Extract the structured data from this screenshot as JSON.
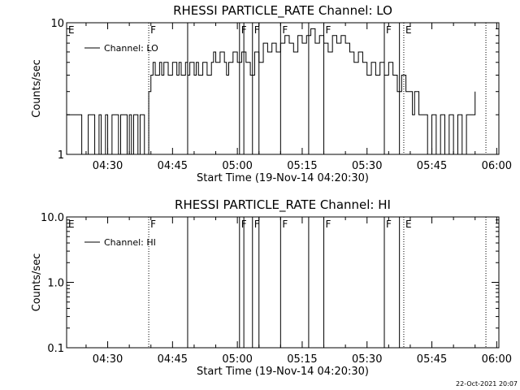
{
  "chart_data": [
    {
      "type": "line",
      "title": "RHESSI  PARTICLE_RATE  Channel:  LO",
      "xlabel": "Start Time (19-Nov-14 04:20:30)",
      "ylabel": "Counts/sec",
      "y_scale": "log",
      "ylim": [
        1,
        10
      ],
      "y_ticks": [
        "1",
        "10"
      ],
      "x_range": [
        "04:20:30",
        "06:00:30"
      ],
      "x_ticks": [
        "04:30",
        "04:45",
        "05:00",
        "05:15",
        "05:30",
        "05:45",
        "06:00"
      ],
      "legend_position": "top-left",
      "series": [
        {
          "name": "Channel: LO",
          "color": "#000000",
          "x": [
            "04:20:30",
            "04:22:00",
            "04:23:30",
            "04:24:00",
            "04:25:00",
            "04:25:30",
            "04:26:30",
            "04:27:00",
            "04:28:00",
            "04:28:30",
            "04:29:30",
            "04:30:00",
            "04:31:00",
            "04:32:00",
            "04:32:30",
            "04:33:00",
            "04:34:30",
            "04:35:00",
            "04:35:30",
            "04:36:00",
            "04:37:00",
            "04:37:30",
            "04:38:30",
            "04:39:00",
            "04:39:30",
            "04:40:00",
            "04:40:30",
            "04:41:00",
            "04:42:00",
            "04:42:30",
            "04:43:00",
            "04:44:00",
            "04:45:00",
            "04:46:00",
            "04:46:30",
            "04:47:00",
            "04:48:00",
            "04:48:30",
            "04:49:00",
            "04:50:00",
            "04:50:30",
            "04:51:00",
            "04:52:00",
            "04:52:30",
            "04:53:00",
            "04:54:00",
            "04:54:30",
            "04:55:00",
            "04:56:00",
            "04:57:00",
            "04:57:30",
            "04:58:00",
            "04:59:00",
            "05:00:00",
            "05:01:00",
            "05:02:00",
            "05:03:00",
            "05:04:00",
            "05:05:00",
            "05:06:00",
            "05:07:00",
            "05:08:00",
            "05:09:00",
            "05:10:00",
            "05:11:00",
            "05:12:00",
            "05:13:00",
            "05:14:00",
            "05:15:00",
            "05:16:00",
            "05:17:00",
            "05:18:00",
            "05:19:00",
            "05:20:00",
            "05:21:00",
            "05:22:00",
            "05:23:00",
            "05:24:00",
            "05:25:00",
            "05:26:00",
            "05:27:00",
            "05:28:00",
            "05:29:00",
            "05:30:00",
            "05:31:00",
            "05:32:00",
            "05:33:00",
            "05:34:00",
            "05:35:00",
            "05:36:00",
            "05:37:00",
            "05:38:00",
            "05:39:00",
            "05:40:00",
            "05:40:30",
            "05:41:00",
            "05:42:00",
            "05:43:00",
            "05:44:00",
            "05:45:00",
            "05:46:00",
            "05:47:00",
            "05:48:00",
            "05:49:00",
            "05:50:00",
            "05:51:00",
            "05:52:00",
            "05:53:00",
            "05:54:00",
            "05:55:00"
          ],
          "values": [
            2,
            2,
            2,
            1,
            1,
            2,
            2,
            1,
            2,
            1,
            2,
            1,
            2,
            2,
            1,
            2,
            1,
            2,
            1,
            2,
            1,
            2,
            1,
            1,
            3,
            4,
            5,
            4,
            5,
            4,
            5,
            4,
            5,
            4,
            5,
            4,
            5,
            4,
            5,
            4,
            5,
            4,
            5,
            5,
            4,
            5,
            6,
            5,
            6,
            5,
            4,
            5,
            6,
            5,
            6,
            5,
            4,
            6,
            5,
            7,
            6,
            7,
            6,
            7,
            8,
            7,
            6,
            8,
            7,
            8,
            9,
            7,
            8,
            7,
            6,
            8,
            7,
            8,
            7,
            6,
            5,
            6,
            5,
            4,
            5,
            4,
            5,
            4,
            5,
            4,
            3,
            4,
            3,
            3,
            2,
            3,
            2,
            2,
            1,
            2,
            1,
            2,
            1,
            2,
            1,
            2,
            1,
            2,
            2,
            3
          ]
        }
      ],
      "annotations": [
        {
          "text": "E",
          "x": "04:20:30",
          "line": "none"
        },
        {
          "text": "F",
          "x": "04:39:30",
          "line": "dotted"
        },
        {
          "text": "",
          "x": "04:48:30",
          "line": "solid"
        },
        {
          "text": "F",
          "x": "05:00:30",
          "line": "solid"
        },
        {
          "text": "",
          "x": "05:01:30",
          "line": "solid"
        },
        {
          "text": "F",
          "x": "05:03:30",
          "line": "solid"
        },
        {
          "text": "",
          "x": "05:05:00",
          "line": "solid"
        },
        {
          "text": "F",
          "x": "05:10:00",
          "line": "solid"
        },
        {
          "text": "",
          "x": "05:16:30",
          "line": "solid"
        },
        {
          "text": "F",
          "x": "05:20:00",
          "line": "solid"
        },
        {
          "text": "F",
          "x": "05:34:00",
          "line": "solid"
        },
        {
          "text": "",
          "x": "05:37:30",
          "line": "solid"
        },
        {
          "text": "E",
          "x": "05:38:30",
          "line": "dotted"
        },
        {
          "text": "",
          "x": "05:57:30",
          "line": "dotted"
        }
      ]
    },
    {
      "type": "line",
      "title": "RHESSI  PARTICLE_RATE  Channel:  HI",
      "xlabel": "Start Time (19-Nov-14 04:20:30)",
      "ylabel": "Counts/sec",
      "y_scale": "log",
      "ylim": [
        0.1,
        10
      ],
      "y_ticks": [
        "0.1",
        "1.0",
        "10.0"
      ],
      "x_range": [
        "04:20:30",
        "06:00:30"
      ],
      "x_ticks": [
        "04:30",
        "04:45",
        "05:00",
        "05:15",
        "05:30",
        "05:45",
        "06:00"
      ],
      "legend_position": "top-left",
      "series": [
        {
          "name": "Channel: HI",
          "color": "#000000",
          "x": [],
          "values": []
        }
      ],
      "annotations": [
        {
          "text": "E",
          "x": "04:20:30",
          "line": "none"
        },
        {
          "text": "F",
          "x": "04:39:30",
          "line": "dotted"
        },
        {
          "text": "",
          "x": "04:48:30",
          "line": "solid"
        },
        {
          "text": "F",
          "x": "05:00:30",
          "line": "solid"
        },
        {
          "text": "",
          "x": "05:01:30",
          "line": "solid"
        },
        {
          "text": "F",
          "x": "05:03:30",
          "line": "solid"
        },
        {
          "text": "",
          "x": "05:05:00",
          "line": "solid"
        },
        {
          "text": "F",
          "x": "05:10:00",
          "line": "solid"
        },
        {
          "text": "",
          "x": "05:16:30",
          "line": "solid"
        },
        {
          "text": "F",
          "x": "05:20:00",
          "line": "solid"
        },
        {
          "text": "F",
          "x": "05:34:00",
          "line": "solid"
        },
        {
          "text": "",
          "x": "05:37:30",
          "line": "solid"
        },
        {
          "text": "E",
          "x": "05:38:30",
          "line": "dotted"
        },
        {
          "text": "",
          "x": "05:57:30",
          "line": "dotted"
        }
      ]
    }
  ],
  "footer": {
    "datestamp": "22-Oct-2021 20:07"
  }
}
